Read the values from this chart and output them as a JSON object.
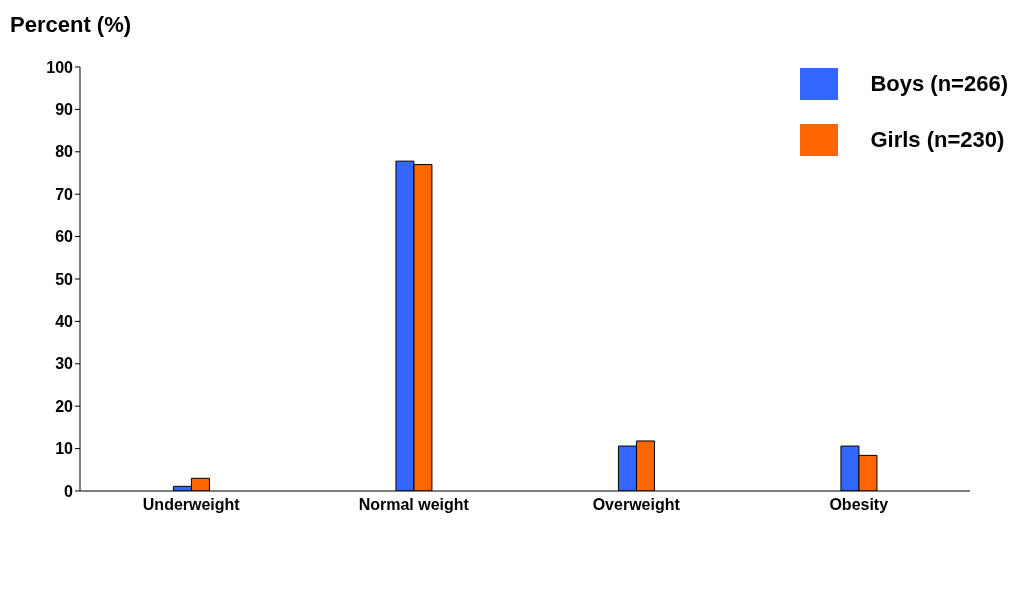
{
  "chart_data": {
    "type": "bar",
    "ylabel": "Percent (%)",
    "categories": [
      "Underweight",
      "Normal weight",
      "Overweight",
      "Obesity"
    ],
    "series": [
      {
        "name": "Boys (n=266)",
        "color": "#3366ff",
        "values": [
          1.1,
          77.8,
          10.6,
          10.6
        ]
      },
      {
        "name": "Girls (n=230)",
        "color": "#ff6600",
        "values": [
          3.0,
          77.0,
          11.8,
          8.4
        ]
      }
    ],
    "ylim": [
      0,
      100
    ],
    "yticks": [
      0,
      10,
      20,
      30,
      40,
      50,
      60,
      70,
      80,
      90,
      100
    ],
    "grid": false,
    "legend": "top right"
  }
}
